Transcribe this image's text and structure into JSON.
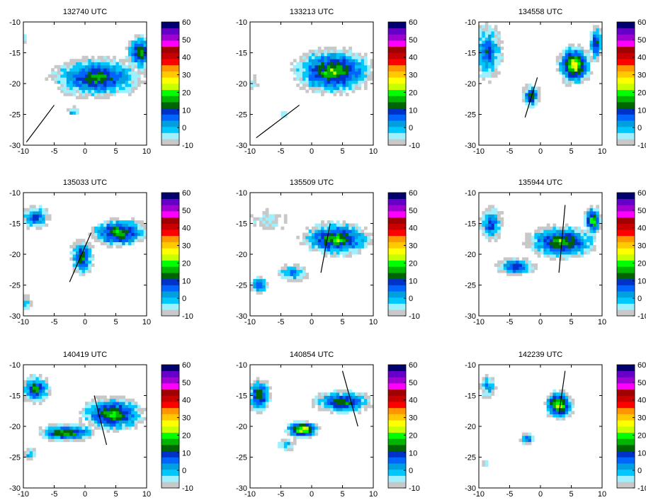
{
  "chart_data": {
    "type": "heatmap",
    "layout": {
      "rows": 3,
      "cols": 3
    },
    "xlim": [
      -10,
      10
    ],
    "ylim": [
      -30,
      -10
    ],
    "x_ticks": [
      -10,
      -5,
      0,
      5,
      10
    ],
    "y_ticks": [
      -10,
      -15,
      -20,
      -25,
      -30
    ],
    "colorbar": {
      "min": -10,
      "max": 60,
      "step": 5,
      "tick_labels": [
        "60",
        "50",
        "40",
        "30",
        "20",
        "10",
        "0",
        "-10"
      ],
      "colors": [
        "#c8c8c8",
        "#9ef0ff",
        "#00c8ff",
        "#00a0e0",
        "#0064ff",
        "#0032c8",
        "#006400",
        "#00b400",
        "#00ff00",
        "#c8ff00",
        "#ffff00",
        "#ffc800",
        "#ff9600",
        "#ff0000",
        "#c80000",
        "#a00000",
        "#ff00ff",
        "#a000d0",
        "#6400c8",
        "#00006e"
      ]
    },
    "panels": [
      {
        "title": "132740 UTC",
        "line": [
          [
            -9.5,
            -29.5
          ],
          [
            -5,
            -23.5
          ]
        ],
        "blobs": [
          [
            2,
            -19,
            8,
            3.5,
            25,
            30
          ],
          [
            -2,
            -24.5,
            1,
            0.8,
            0,
            10
          ],
          [
            9,
            -15,
            2.5,
            3,
            0,
            30
          ],
          [
            -10,
            -12.5,
            0.5,
            0.8,
            0,
            10
          ]
        ]
      },
      {
        "title": "133213 UTC",
        "line": [
          [
            -9,
            -28.8
          ],
          [
            -2,
            -23.5
          ]
        ],
        "blobs": [
          [
            3.5,
            -18,
            7,
            4,
            30,
            35
          ],
          [
            -4.5,
            -25,
            0.6,
            0.6,
            0,
            10
          ],
          [
            -9.5,
            -20,
            0.7,
            1.5,
            0,
            0
          ]
        ]
      },
      {
        "title": "134558 UTC",
        "line": [
          [
            -2.5,
            -25.5
          ],
          [
            -0.5,
            -19
          ]
        ],
        "blobs": [
          [
            -8.5,
            -15,
            2.5,
            5,
            0,
            20
          ],
          [
            5.5,
            -17,
            3,
            3.5,
            0,
            45
          ],
          [
            -1.5,
            -22,
            1.5,
            2,
            0,
            30
          ],
          [
            9,
            -13.5,
            1.2,
            3,
            0,
            30
          ]
        ]
      },
      {
        "title": "135033 UTC",
        "line": [
          [
            -2.5,
            -24.5
          ],
          [
            1,
            -16.5
          ]
        ],
        "blobs": [
          [
            -8,
            -14,
            2.5,
            2,
            0,
            20
          ],
          [
            -0.5,
            -20.5,
            2,
            3,
            0,
            30
          ],
          [
            5.5,
            -16.5,
            5,
            2.5,
            25,
            35
          ],
          [
            -9.5,
            -28,
            0.8,
            1.5,
            0,
            10
          ]
        ]
      },
      {
        "title": "135509 UTC",
        "line": [
          [
            1.5,
            -23
          ],
          [
            3,
            -15
          ]
        ],
        "blobs": [
          [
            4,
            -17.5,
            6,
            3,
            25,
            35
          ],
          [
            -8.5,
            -25,
            1.5,
            1.5,
            0,
            25
          ],
          [
            -3,
            -23,
            2.5,
            1.5,
            0,
            15
          ],
          [
            -7,
            -14.5,
            3,
            1.5,
            0,
            0
          ]
        ]
      },
      {
        "title": "135944 UTC",
        "line": [
          [
            3,
            -23
          ],
          [
            4,
            -12
          ]
        ],
        "blobs": [
          [
            3.5,
            -18,
            6,
            3,
            30,
            35
          ],
          [
            -4,
            -22,
            3.5,
            1.5,
            0,
            25
          ],
          [
            -8,
            -15,
            2,
            3,
            0,
            20
          ],
          [
            8.5,
            -14.5,
            1.5,
            2.5,
            0,
            40
          ]
        ]
      },
      {
        "title": "140419 UTC",
        "line": [
          [
            1.5,
            -15
          ],
          [
            3.5,
            -23
          ]
        ],
        "blobs": [
          [
            4.5,
            -18,
            5.5,
            3,
            20,
            35
          ],
          [
            -3,
            -21,
            5,
            1.5,
            0,
            35
          ],
          [
            -8,
            -14,
            2.5,
            2.5,
            0,
            30
          ],
          [
            -9,
            -24.5,
            1.2,
            1,
            0,
            10
          ]
        ]
      },
      {
        "title": "140854 UTC",
        "line": [
          [
            5,
            -11
          ],
          [
            7.5,
            -20
          ]
        ],
        "blobs": [
          [
            -1.5,
            -20.5,
            3,
            1.5,
            0,
            50
          ],
          [
            5,
            -16,
            5,
            2,
            20,
            30
          ],
          [
            -8.5,
            -15,
            2,
            3,
            0,
            30
          ],
          [
            -4,
            -23,
            1.5,
            1,
            0,
            10
          ]
        ]
      },
      {
        "title": "142239 UTC",
        "line": [
          [
            3,
            -18
          ],
          [
            4,
            -11
          ]
        ],
        "blobs": [
          [
            3,
            -16.5,
            2.5,
            2.5,
            0,
            45
          ],
          [
            -2,
            -22,
            1.5,
            1,
            0,
            20
          ],
          [
            -8.5,
            -13.5,
            1.5,
            2,
            0,
            10
          ],
          [
            -9,
            -26,
            0.6,
            0.6,
            0,
            10
          ]
        ]
      }
    ]
  }
}
